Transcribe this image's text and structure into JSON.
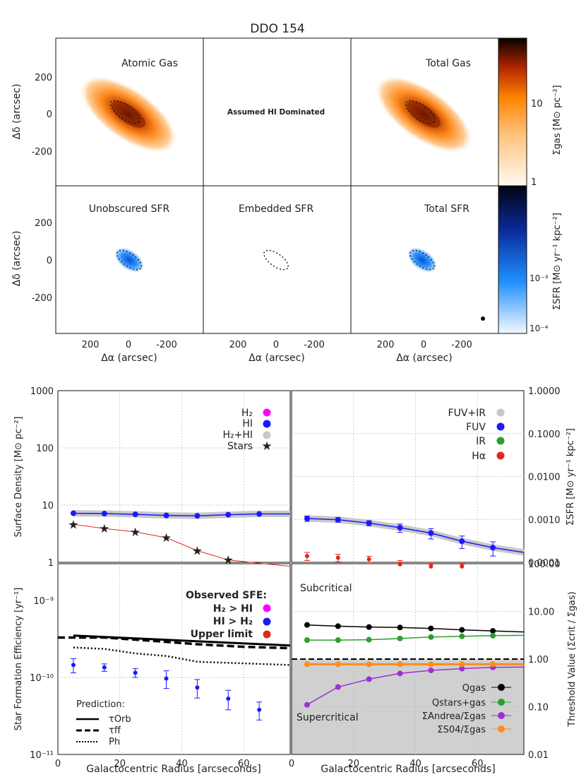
{
  "title": "DDO 154",
  "colors": {
    "gas_light": "#fff3e6",
    "gas_mid": "#ff8c1a",
    "gas_dark": "#3a0a00",
    "sfr_light": "#e6f2ff",
    "sfr_mid": "#1f8fff",
    "sfr_dark": "#020418",
    "h2": "#ff00ff",
    "hi": "#1a1aff",
    "total": "#c8c8c8",
    "stars": "#e0281e",
    "fuv_ir": "#c8c8c8",
    "fuv": "#1a1aff",
    "ir": "#2e9e2e",
    "halpha": "#e0281e",
    "qgas": "#000000",
    "qstars": "#2e9e2e",
    "andrea": "#9b30d9",
    "s04": "#ff8c1a",
    "supercritical_bg": "#d0d0d0"
  },
  "maps": {
    "panels": [
      "Atomic Gas",
      "Assumed HI Dominated",
      "Total Gas",
      "Unobscured SFR",
      "Embedded SFR",
      "Total SFR"
    ],
    "ylabel": "Δδ (arcsec)",
    "xlabel": "Δα (arcsec)",
    "yticks": [
      "200",
      "0",
      "-200"
    ],
    "xticks": [
      "200",
      "0",
      "-200"
    ],
    "gas_colorbar": {
      "label": "Σgas [M⊙ pc⁻²]",
      "ticks": [
        "10",
        "1"
      ]
    },
    "sfr_colorbar": {
      "label": "ΣSFR [M⊙ yr⁻¹ kpc⁻²]",
      "ticks": [
        "10⁻³",
        "10⁻⁴"
      ]
    }
  },
  "chart_data": [
    {
      "type": "line",
      "id": "surface_density",
      "ylabel": "Surface Density [M⊙ pc⁻²]",
      "yscale": "log",
      "ylim": [
        1,
        1000
      ],
      "xlim": [
        0,
        75
      ],
      "yticks": [
        "1000",
        "100",
        "10",
        "1"
      ],
      "legend": [
        "H₂",
        "HI",
        "H₂+HI",
        "Stars"
      ],
      "series": [
        {
          "name": "HI",
          "x": [
            5,
            15,
            25,
            35,
            45,
            55,
            65
          ],
          "y": [
            7.2,
            7.1,
            6.9,
            6.6,
            6.5,
            6.8,
            7.0
          ],
          "extend_to": 7.0
        },
        {
          "name": "H₂+HI",
          "x": [
            5,
            15,
            25,
            35,
            45,
            55,
            65
          ],
          "y": [
            7.2,
            7.1,
            6.9,
            6.6,
            6.5,
            6.8,
            7.0
          ]
        },
        {
          "name": "Stars",
          "x": [
            5,
            15,
            25,
            35,
            45,
            55
          ],
          "y": [
            4.6,
            3.9,
            3.4,
            2.7,
            1.6,
            1.1
          ],
          "extend_to": 0.85
        }
      ]
    },
    {
      "type": "line",
      "id": "sfr_density",
      "ylabel": "ΣSFR [M⊙ yr⁻¹ kpc⁻²]",
      "yscale": "log",
      "ylim": [
        0.0001,
        1.0
      ],
      "xlim": [
        0,
        75
      ],
      "yticks": [
        "1.0000",
        "0.1000",
        "0.0100",
        "0.0010",
        "0.0001"
      ],
      "legend": [
        "FUV+IR",
        "FUV",
        "IR",
        "Hα"
      ],
      "series": [
        {
          "name": "FUV+IR",
          "x": [
            5,
            15,
            25,
            35,
            45,
            55,
            65
          ],
          "y": [
            0.00105,
            0.00098,
            0.00082,
            0.00064,
            0.00048,
            0.00031,
            0.00022
          ],
          "extend_to": 0.00017
        },
        {
          "name": "FUV",
          "x": [
            5,
            15,
            25,
            35,
            45,
            55,
            65
          ],
          "y": [
            0.00105,
            0.00098,
            0.00082,
            0.00064,
            0.00048,
            0.00031,
            0.00022
          ],
          "err": [
            0.00015,
            0.00012,
            0.00011,
            0.00014,
            0.00013,
            0.0001,
            8e-05
          ],
          "extend_to": 0.00017
        },
        {
          "name": "Hα",
          "x": [
            5,
            15,
            25,
            35,
            45,
            55
          ],
          "y": [
            0.00014,
            0.000128,
            0.000118,
            9e-05,
            8e-05,
            8e-05
          ],
          "err": [
            3e-05,
            2.5e-05,
            2e-05,
            2e-05,
            1e-05,
            1e-05
          ]
        }
      ]
    },
    {
      "type": "scatter",
      "id": "sfe",
      "ylabel": "Star Formation Efficiency [yr⁻¹]",
      "xlabel": "Galactocentric Radius [arcseconds]",
      "yscale": "log",
      "ylim": [
        1e-11,
        3e-09
      ],
      "xlim": [
        0,
        75
      ],
      "yticks": [
        "10⁻⁹",
        "10⁻¹⁰",
        "10⁻¹¹"
      ],
      "xticks": [
        "0",
        "20",
        "40",
        "60"
      ],
      "legend_title": "Observed SFE:",
      "legend": [
        "H₂ > HI",
        "HI > H₂",
        "Upper limit"
      ],
      "prediction_title": "Prediction:",
      "prediction_legend": [
        "τOrb",
        "τff",
        "Ph"
      ],
      "series": [
        {
          "name": "HI > H₂",
          "x": [
            5,
            15,
            25,
            35,
            45,
            55,
            65
          ],
          "y": [
            1.45e-10,
            1.35e-10,
            1.15e-10,
            9.7e-11,
            7.4e-11,
            5.3e-11,
            3.8e-11
          ],
          "err": [
            3e-11,
            1.5e-11,
            1.5e-11,
            2.5e-11,
            2e-11,
            1.5e-11,
            1e-11
          ]
        },
        {
          "name": "τOrb",
          "x": [
            5,
            75
          ],
          "y": [
            3.5e-10,
            2.6e-10
          ]
        },
        {
          "name": "τff",
          "x": [
            0,
            15,
            30,
            45,
            60,
            75
          ],
          "y": [
            3.3e-10,
            3.3e-10,
            3e-10,
            2.7e-10,
            2.5e-10,
            2.4e-10
          ]
        },
        {
          "name": "Ph",
          "x": [
            5,
            15,
            25,
            35,
            45,
            55,
            65,
            75
          ],
          "y": [
            2.45e-10,
            2.35e-10,
            2.05e-10,
            1.9e-10,
            1.6e-10,
            1.55e-10,
            1.5e-10,
            1.45e-10
          ]
        }
      ]
    },
    {
      "type": "line",
      "id": "threshold",
      "ylabel": "Threshold Value (Σcrit / Σgas)",
      "xlabel": "Galactocentric Radius [arcseconds]",
      "yscale": "log",
      "ylim": [
        0.01,
        100
      ],
      "xlim": [
        0,
        75
      ],
      "yticks": [
        "100.00",
        "10.00",
        "1.00",
        "0.10",
        "0.01"
      ],
      "xticks": [
        "0",
        "20",
        "40",
        "60"
      ],
      "region_labels": [
        "Subcritical",
        "Supercritical"
      ],
      "legend": [
        "Qgas",
        "Qstars+gas",
        "ΣAndrea/Σgas",
        "ΣS04/Σgas"
      ],
      "threshold": 1.0,
      "series": [
        {
          "name": "Qgas",
          "x": [
            5,
            15,
            25,
            35,
            45,
            55,
            65
          ],
          "y": [
            5.2,
            4.9,
            4.7,
            4.6,
            4.4,
            4.1,
            3.9
          ],
          "extend_to": 3.7
        },
        {
          "name": "Qstars+gas",
          "x": [
            5,
            15,
            25,
            35,
            45,
            55,
            65
          ],
          "y": [
            2.5,
            2.5,
            2.55,
            2.7,
            2.9,
            3.0,
            3.1
          ],
          "extend_to": 3.15
        },
        {
          "name": "ΣAndrea/Σgas",
          "x": [
            5,
            15,
            25,
            35,
            45,
            55,
            65
          ],
          "y": [
            0.11,
            0.26,
            0.38,
            0.5,
            0.58,
            0.63,
            0.67
          ],
          "extend_to": 0.68
        },
        {
          "name": "ΣS04/Σgas",
          "x": [
            5,
            15,
            25,
            35,
            45,
            55,
            65
          ],
          "y": [
            0.78,
            0.78,
            0.78,
            0.78,
            0.78,
            0.78,
            0.78
          ],
          "extend_to": 0.78
        }
      ]
    }
  ]
}
